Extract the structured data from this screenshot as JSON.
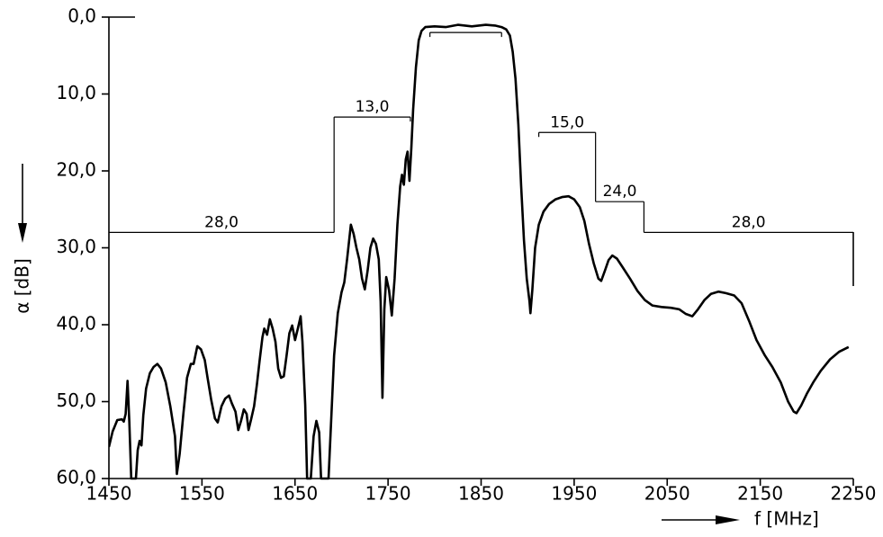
{
  "chart_data": {
    "type": "line",
    "ylabel": "α  [dB]",
    "xlabel": "f  [MHz]",
    "color": "#000000",
    "xlim": [
      1450,
      2250
    ],
    "xticks": [
      1450,
      1550,
      1650,
      1750,
      1850,
      1950,
      2050,
      2150,
      2250
    ],
    "ylim": [
      60,
      0
    ],
    "yticks": [
      {
        "value": 0,
        "label": "0,0"
      },
      {
        "value": 10,
        "label": "10,0"
      },
      {
        "value": 20,
        "label": "20,0"
      },
      {
        "value": 30,
        "label": "30,0"
      },
      {
        "value": 40,
        "label": "40,0"
      },
      {
        "value": 50,
        "label": "50,0"
      },
      {
        "value": 60,
        "label": "60,0"
      }
    ],
    "mask": [
      {
        "x": [
          1450,
          1692
        ],
        "value": 28,
        "label": "28,0"
      },
      {
        "x": [
          1692,
          1774
        ],
        "value": 13,
        "label": "13,0"
      },
      {
        "x": [
          1795,
          1872
        ],
        "value": 2
      },
      {
        "x": [
          1912,
          1973
        ],
        "value": 15,
        "label": "15,0"
      },
      {
        "x": [
          1973,
          2025
        ],
        "value": 24,
        "label": "24,0"
      },
      {
        "x": [
          2025,
          2250
        ],
        "value": 28,
        "label": "28,0"
      }
    ],
    "x": [
      1450,
      1454,
      1459,
      1464,
      1466,
      1468,
      1470,
      1472,
      1474,
      1479,
      1481,
      1483,
      1485,
      1487,
      1490,
      1494,
      1498,
      1502,
      1506,
      1511,
      1516,
      1521,
      1523,
      1526,
      1530,
      1534,
      1538,
      1541,
      1545,
      1549,
      1553,
      1556,
      1560,
      1564,
      1567,
      1571,
      1575,
      1579,
      1582,
      1586,
      1589,
      1592,
      1595,
      1598,
      1600,
      1603,
      1606,
      1609,
      1612,
      1615,
      1617,
      1620,
      1623,
      1626,
      1629,
      1632,
      1635,
      1638,
      1641,
      1644,
      1647,
      1650,
      1653,
      1656,
      1658,
      1661,
      1663,
      1667,
      1670,
      1673,
      1676,
      1678,
      1686,
      1689,
      1692,
      1696,
      1700,
      1703,
      1706,
      1710,
      1713,
      1716,
      1719,
      1722,
      1725,
      1728,
      1731,
      1734,
      1737,
      1740,
      1742,
      1744,
      1746,
      1748,
      1751,
      1754,
      1757,
      1760,
      1763,
      1765,
      1767,
      1769,
      1771,
      1773,
      1775,
      1777,
      1780,
      1783,
      1786,
      1790,
      1800,
      1812,
      1825,
      1840,
      1855,
      1865,
      1872,
      1877,
      1881,
      1884,
      1887,
      1890,
      1893,
      1896,
      1899,
      1902,
      1903,
      1905,
      1908,
      1912,
      1917,
      1923,
      1930,
      1937,
      1944,
      1950,
      1956,
      1961,
      1966,
      1971,
      1976,
      1979,
      1983,
      1987,
      1991,
      1996,
      2002,
      2010,
      2018,
      2026,
      2034,
      2044,
      2054,
      2063,
      2070,
      2077,
      2083,
      2090,
      2097,
      2105,
      2113,
      2122,
      2130,
      2138,
      2146,
      2155,
      2163,
      2172,
      2180,
      2186,
      2189,
      2194,
      2200,
      2207,
      2215,
      2225,
      2235,
      2245
    ],
    "values": [
      55.9,
      53.9,
      52.4,
      52.3,
      52.6,
      51.6,
      47.3,
      52.7,
      60,
      60,
      56.3,
      55.1,
      55.7,
      51.8,
      48.3,
      46.3,
      45.5,
      45.1,
      45.7,
      47.5,
      50.6,
      54.5,
      59.4,
      56.8,
      51.6,
      46.9,
      45.1,
      45.1,
      42.8,
      43.2,
      44.6,
      46.9,
      49.8,
      52.2,
      52.7,
      50.6,
      49.6,
      49.2,
      50.2,
      51.3,
      53.7,
      52.5,
      51.0,
      51.6,
      53.7,
      52.2,
      50.6,
      47.8,
      44.6,
      41.6,
      40.5,
      41.3,
      39.3,
      40.5,
      42.2,
      45.7,
      46.9,
      46.7,
      44.0,
      41.1,
      40.1,
      42.0,
      40.5,
      38.9,
      42.2,
      50.4,
      60,
      60,
      54.5,
      52.5,
      54.0,
      60,
      60,
      52.0,
      44.0,
      38.5,
      35.8,
      34.5,
      31.5,
      27.0,
      28.2,
      30.0,
      31.5,
      34.0,
      35.4,
      33.0,
      30.0,
      28.8,
      29.5,
      31.5,
      37.0,
      49.5,
      38.0,
      33.8,
      35.5,
      38.8,
      34.0,
      27.0,
      22.0,
      20.5,
      21.8,
      18.5,
      17.5,
      21.3,
      17.0,
      12.0,
      6.5,
      3.0,
      1.8,
      1.3,
      1.2,
      1.3,
      1.0,
      1.2,
      1.0,
      1.1,
      1.3,
      1.6,
      2.4,
      4.5,
      8.0,
      14.0,
      22.0,
      29.0,
      34.0,
      37.0,
      38.5,
      35.5,
      30.0,
      27.0,
      25.3,
      24.3,
      23.7,
      23.4,
      23.3,
      23.7,
      24.7,
      26.5,
      29.5,
      32.0,
      34.0,
      34.3,
      33.0,
      31.6,
      31.0,
      31.4,
      32.5,
      34.0,
      35.6,
      36.8,
      37.5,
      37.7,
      37.8,
      38.0,
      38.6,
      38.9,
      38.0,
      36.8,
      36.0,
      35.7,
      35.9,
      36.2,
      37.2,
      39.5,
      42.0,
      44.0,
      45.5,
      47.5,
      50.0,
      51.3,
      51.5,
      50.5,
      49.0,
      47.5,
      46.0,
      44.5,
      43.5,
      42.9
    ]
  }
}
